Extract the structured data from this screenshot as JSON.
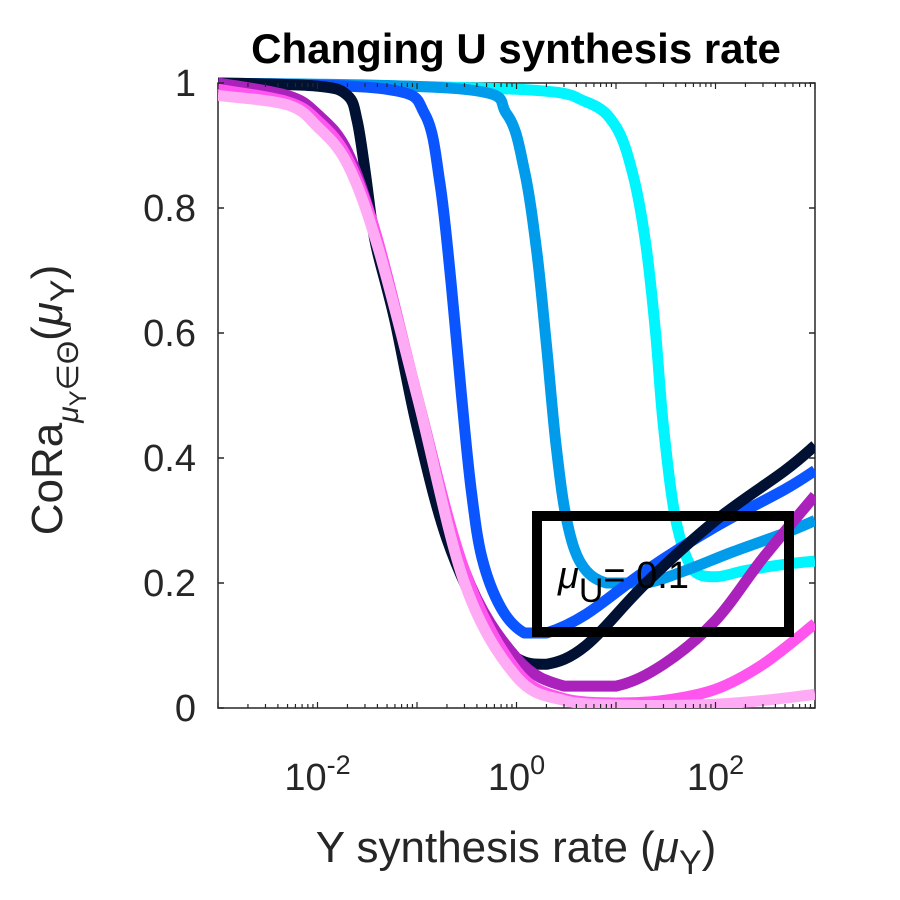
{
  "chart_data": {
    "type": "line",
    "title": "Changing U synthesis rate",
    "xlabel": "Y synthesis rate (μY)",
    "xlabel_parts": {
      "main": "Y synthesis rate (",
      "sym": "μ",
      "sub": "Y",
      "close": ")"
    },
    "ylabel": "CoRa μY∈Θ(μY)",
    "ylabel_parts": {
      "main": "CoRa",
      "sub_sym": "μ",
      "sub_sub": "Y",
      "sub_rest": "∈Θ",
      "open": "(",
      "sym": "μ",
      "sym_sub": "Y",
      "close": ")"
    },
    "x_scale": "log",
    "xlim": [
      0.001,
      1000
    ],
    "ylim": [
      0,
      1
    ],
    "x_ticks": [
      {
        "value": 0.01,
        "base": "10",
        "exp": "-2"
      },
      {
        "value": 1,
        "base": "10",
        "exp": "0"
      },
      {
        "value": 100,
        "base": "10",
        "exp": "2"
      }
    ],
    "y_ticks": [
      {
        "value": 0,
        "label": "0"
      },
      {
        "value": 0.2,
        "label": "0.2"
      },
      {
        "value": 0.4,
        "label": "0.4"
      },
      {
        "value": 0.6,
        "label": "0.6"
      },
      {
        "value": 0.8,
        "label": "0.8"
      },
      {
        "value": 1,
        "label": "1"
      }
    ],
    "grid": false,
    "annotation": {
      "sym": "μ",
      "sub": "U",
      "rest": "= 0.1"
    },
    "series": [
      {
        "color": "#00F5FF",
        "x": [
          0.001,
          1,
          5,
          10,
          15,
          20,
          25,
          30,
          40,
          60,
          100,
          200,
          500,
          1000
        ],
        "y": [
          1.0,
          0.99,
          0.97,
          0.93,
          0.85,
          0.74,
          0.6,
          0.45,
          0.3,
          0.22,
          0.21,
          0.22,
          0.23,
          0.235
        ]
      },
      {
        "color": "#009BEB",
        "x": [
          0.001,
          0.3,
          0.8,
          1.2,
          1.6,
          2.0,
          2.5,
          3.2,
          4.5,
          8,
          20,
          50,
          150,
          500,
          1000
        ],
        "y": [
          1.0,
          0.99,
          0.95,
          0.86,
          0.73,
          0.58,
          0.42,
          0.3,
          0.23,
          0.2,
          0.2,
          0.22,
          0.25,
          0.28,
          0.3
        ]
      },
      {
        "color": "#0A55FF",
        "x": [
          0.001,
          0.05,
          0.12,
          0.17,
          0.22,
          0.28,
          0.35,
          0.45,
          0.7,
          1.2,
          2,
          5,
          20,
          100,
          500,
          1000
        ],
        "y": [
          1.0,
          0.99,
          0.95,
          0.84,
          0.68,
          0.5,
          0.35,
          0.24,
          0.16,
          0.12,
          0.12,
          0.15,
          0.22,
          0.29,
          0.35,
          0.38
        ]
      },
      {
        "color": "#001133",
        "x": [
          0.001,
          0.01,
          0.02,
          0.025,
          0.03,
          0.035,
          0.04,
          0.06,
          0.1,
          0.2,
          0.5,
          1,
          2,
          5,
          20,
          100,
          500,
          1000
        ],
        "y": [
          1.0,
          0.995,
          0.98,
          0.94,
          0.86,
          0.78,
          0.73,
          0.62,
          0.45,
          0.27,
          0.13,
          0.08,
          0.07,
          0.1,
          0.2,
          0.3,
          0.38,
          0.42
        ]
      },
      {
        "color": "#AA22BB",
        "x": [
          0.001,
          0.005,
          0.01,
          0.02,
          0.04,
          0.1,
          0.3,
          1,
          3,
          10,
          30,
          100,
          300,
          1000
        ],
        "y": [
          1.0,
          0.98,
          0.95,
          0.89,
          0.75,
          0.5,
          0.22,
          0.08,
          0.035,
          0.035,
          0.07,
          0.14,
          0.24,
          0.34
        ]
      },
      {
        "color": "#FF55EE",
        "x": [
          0.001,
          0.005,
          0.01,
          0.02,
          0.04,
          0.1,
          0.3,
          1,
          3,
          10,
          30,
          100,
          300,
          1000
        ],
        "y": [
          0.99,
          0.97,
          0.94,
          0.88,
          0.75,
          0.5,
          0.22,
          0.06,
          0.015,
          0.008,
          0.012,
          0.03,
          0.07,
          0.135
        ]
      },
      {
        "color": "#FFAAF5",
        "x": [
          0.001,
          0.005,
          0.01,
          0.02,
          0.04,
          0.1,
          0.3,
          1,
          3,
          10,
          30,
          100,
          300,
          1000
        ],
        "y": [
          0.98,
          0.965,
          0.93,
          0.87,
          0.74,
          0.5,
          0.2,
          0.05,
          0.012,
          0.005,
          0.004,
          0.006,
          0.012,
          0.022
        ]
      }
    ]
  }
}
